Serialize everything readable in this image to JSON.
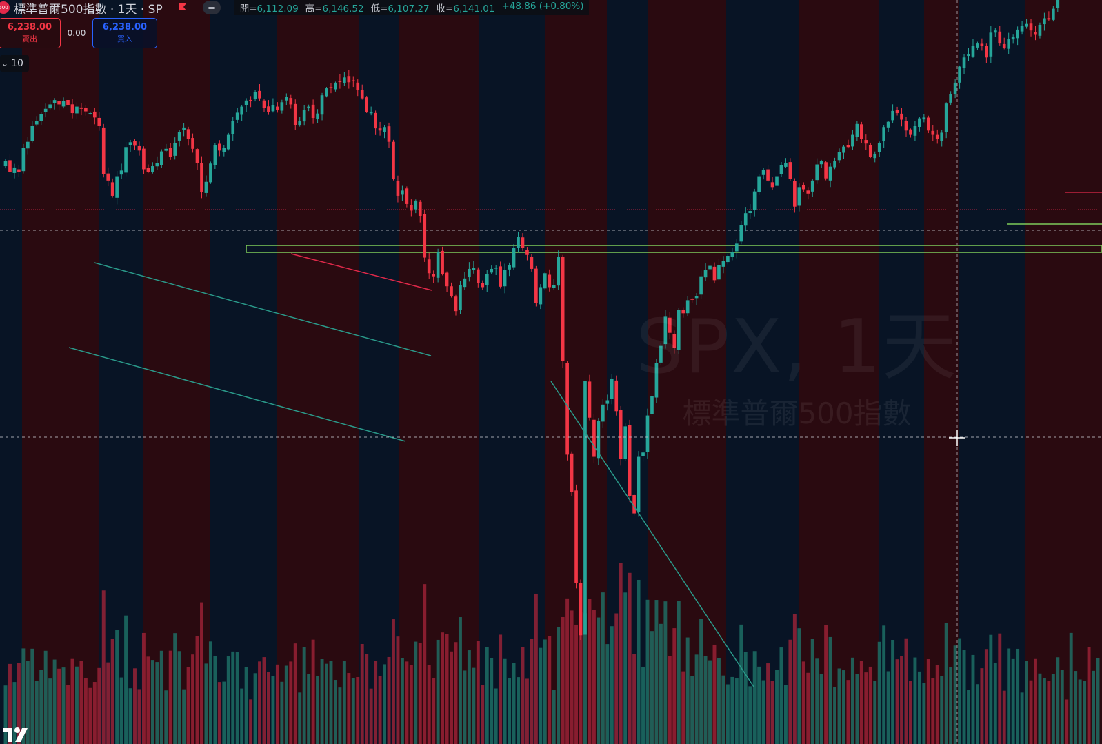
{
  "header": {
    "symbol_badge": "500",
    "title": "標準普爾500指數 · 1天 · SP",
    "ohlc": [
      {
        "label": "開=",
        "value": "6,112.09"
      },
      {
        "label": "高=",
        "value": "6,146.52"
      },
      {
        "label": "低=",
        "value": "6,107.27"
      },
      {
        "label": "收=",
        "value": "6,141.01"
      }
    ],
    "change": "+48.86 (+0.80%)"
  },
  "trade": {
    "sell_price": "6,238.00",
    "sell_label": "賣出",
    "spread": "0.00",
    "buy_price": "6,238.00",
    "buy_label": "買入"
  },
  "interval_value": "10",
  "watermark": {
    "symbol": "SPX, 1天",
    "name": "標準普爾500指數"
  },
  "colors": {
    "up": "#26a69a",
    "down": "#f23645",
    "accent": "#2962ff",
    "band_red": "#2a0a10",
    "band_blue": "#081425"
  },
  "chart_data": {
    "type": "candlestick",
    "title": "標準普爾500指數 · 1天 · SP",
    "ylim": [
      4620,
      6330
    ],
    "close": [
      5960,
      5935,
      5945,
      5935,
      5990,
      6004,
      6040,
      6052,
      6068,
      6080,
      6090,
      6100,
      6090,
      6098,
      6088,
      6070,
      6085,
      6080,
      6074,
      6070,
      6060,
      6040,
      5930,
      5915,
      5880,
      5925,
      5938,
      5992,
      6003,
      5995,
      5984,
      5941,
      5935,
      5948,
      5955,
      5982,
      5988,
      5970,
      6002,
      6026,
      6037,
      6010,
      5988,
      5955,
      5888,
      5912,
      5954,
      5996,
      5984,
      5990,
      6020,
      6052,
      6071,
      6085,
      6099,
      6099,
      6118,
      6104,
      6082,
      6072,
      6089,
      6077,
      6095,
      6108,
      6090,
      6042,
      6051,
      6078,
      6085,
      6059,
      6069,
      6111,
      6127,
      6128,
      6140,
      6142,
      6152,
      6141,
      6145,
      6123,
      6104,
      6073,
      6072,
      6035,
      6030,
      6038,
      6004,
      5918,
      5880,
      5892,
      5861,
      5846,
      5869,
      5834,
      5738,
      5702,
      5695,
      5750,
      5700,
      5672,
      5650,
      5615,
      5675,
      5690,
      5712,
      5715,
      5680,
      5670,
      5700,
      5712,
      5715,
      5671,
      5710,
      5720,
      5760,
      5785,
      5760,
      5744,
      5712,
      5634,
      5670,
      5702,
      5670,
      5675,
      5740,
      5500,
      5285,
      5200,
      4990,
      4870,
      5455,
      5370,
      5280,
      5363,
      5400,
      5410,
      5460,
      5385,
      5275,
      5350,
      5190,
      5150,
      5280,
      5290,
      5375,
      5420,
      5495,
      5535,
      5602,
      5565,
      5530,
      5618,
      5610,
      5640,
      5642,
      5650,
      5695,
      5710,
      5719,
      5686,
      5720,
      5730,
      5742,
      5750,
      5770,
      5812,
      5840,
      5845,
      5890,
      5925,
      5940,
      5915,
      5900,
      5925,
      5950,
      5955,
      5918,
      5855,
      5900,
      5895,
      5885,
      5915,
      5952,
      5960,
      5920,
      5947,
      5960,
      5980,
      5993,
      5992,
      6020,
      6045,
      6010,
      6000,
      5970,
      5976,
      6001,
      6038,
      6050,
      6075,
      6070,
      6055,
      6030,
      6020,
      6040,
      6058,
      6060,
      6030,
      6020,
      6010,
      6025,
      6092,
      6114,
      6140,
      6177,
      6198,
      6205,
      6225,
      6230,
      6225,
      6198,
      6255,
      6260,
      6230,
      6220,
      6240,
      6245,
      6262,
      6270,
      6275,
      6260,
      6250,
      6273,
      6288,
      6285,
      6310,
      6340,
      6360,
      6358,
      6388,
      6390,
      6402,
      6410,
      6395,
      6420,
      6432
    ]
  }
}
